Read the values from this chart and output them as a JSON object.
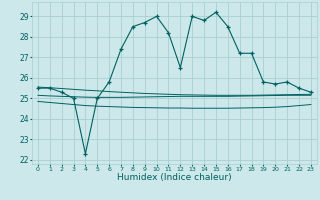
{
  "xlabel": "Humidex (Indice chaleur)",
  "xlim": [
    -0.5,
    23.5
  ],
  "ylim": [
    21.8,
    29.7
  ],
  "yticks": [
    22,
    23,
    24,
    25,
    26,
    27,
    28,
    29
  ],
  "xtick_labels": [
    "0",
    "1",
    "2",
    "3",
    "4",
    "5",
    "6",
    "7",
    "8",
    "9",
    "10",
    "11",
    "12",
    "13",
    "14",
    "15",
    "16",
    "17",
    "18",
    "19",
    "20",
    "21",
    "22",
    "23"
  ],
  "bg_color": "#cce8ea",
  "grid_color": "#aacfd2",
  "line_color": "#006060",
  "main_series": [
    25.5,
    25.5,
    25.3,
    25.0,
    22.3,
    25.0,
    25.8,
    27.4,
    28.5,
    28.7,
    29.0,
    28.2,
    26.5,
    29.0,
    28.8,
    29.2,
    28.5,
    27.2,
    27.2,
    25.8,
    25.7,
    25.8,
    25.5,
    25.3
  ],
  "upper_line": [
    25.15,
    25.12,
    25.1,
    25.08,
    25.06,
    25.05,
    25.05,
    25.05,
    25.06,
    25.07,
    25.08,
    25.09,
    25.1,
    25.1,
    25.1,
    25.1,
    25.1,
    25.11,
    25.12,
    25.13,
    25.14,
    25.15,
    25.15,
    25.15
  ],
  "lower_line": [
    24.85,
    24.8,
    24.75,
    24.7,
    24.65,
    24.62,
    24.6,
    24.58,
    24.56,
    24.55,
    24.54,
    24.53,
    24.53,
    24.52,
    24.52,
    24.52,
    24.52,
    24.53,
    24.54,
    24.55,
    24.57,
    24.6,
    24.65,
    24.7
  ],
  "trend_line": [
    25.55,
    25.52,
    25.48,
    25.44,
    25.4,
    25.37,
    25.33,
    25.3,
    25.27,
    25.24,
    25.22,
    25.2,
    25.18,
    25.17,
    25.16,
    25.15,
    25.15,
    25.15,
    25.15,
    25.16,
    25.17,
    25.18,
    25.19,
    25.2
  ]
}
